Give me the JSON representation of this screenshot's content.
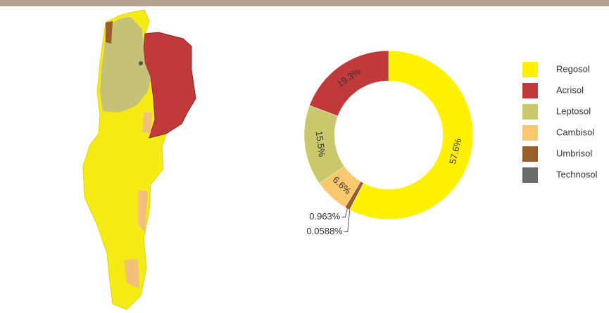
{
  "chart_data": {
    "type": "donut",
    "categories": [
      "Regosol",
      "Acrisol",
      "Leptosol",
      "Cambisol",
      "Umbrisol",
      "Technosol"
    ],
    "values": [
      57.6,
      19.3,
      15.5,
      6.6,
      0.963,
      0.0588
    ],
    "value_labels": [
      "57.6%",
      "19.3%",
      "15.5%",
      "6.6%",
      "0.963%",
      "0.0588%"
    ],
    "colors": [
      "#fff200",
      "#c0393b",
      "#c9c96c",
      "#f8c86f",
      "#9a5e2a",
      "#6b6b6b"
    ],
    "legend": "right"
  }
}
